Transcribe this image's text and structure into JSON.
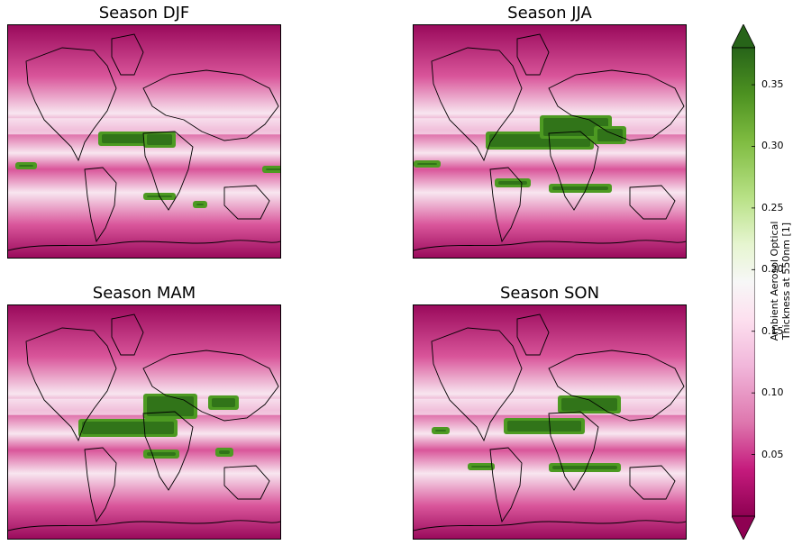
{
  "panels": [
    {
      "id": "djf",
      "title": "Season DJF"
    },
    {
      "id": "jja",
      "title": "Season JJA"
    },
    {
      "id": "mam",
      "title": "Season MAM"
    },
    {
      "id": "son",
      "title": "Season SON"
    }
  ],
  "colorbar": {
    "label_line1": "Ambient Aerosol Optical",
    "label_line2": "Thickness at 550nm [1]",
    "ticks": [
      "0.05",
      "0.10",
      "0.15",
      "0.20",
      "0.25",
      "0.30",
      "0.35"
    ],
    "range": [
      0.0,
      0.38
    ],
    "extend": "both",
    "colormap": "PiYG",
    "colors": [
      "#8e0152",
      "#c51b7d",
      "#de77ae",
      "#f1b6da",
      "#fde0ef",
      "#f7f7f7",
      "#e6f5d0",
      "#b8e186",
      "#7fbc41",
      "#4d9221",
      "#276419"
    ]
  },
  "colors": {
    "low": "#9a0a5c",
    "mid_low": "#d9559a",
    "mid": "#f8e6f0",
    "high": "#4d9a22",
    "very_high": "#2a6a18",
    "coast": "#000000"
  }
}
